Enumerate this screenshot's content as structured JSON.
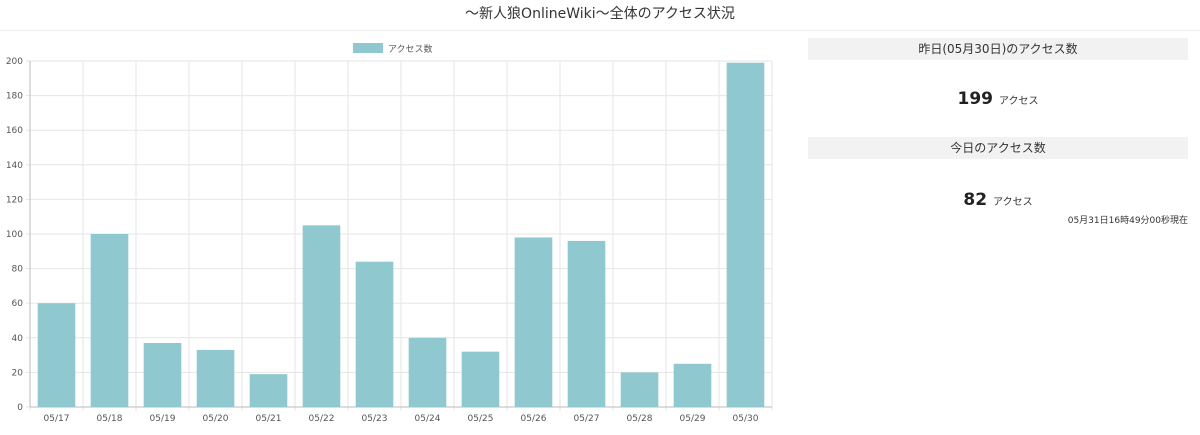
{
  "title": "〜新人狼OnlineWiki〜全体のアクセス状況",
  "yesterday": {
    "header": "昨日(05月30日)のアクセス数",
    "count": "199",
    "unit": "アクセス"
  },
  "today": {
    "header": "今日のアクセス数",
    "count": "82",
    "unit": "アクセス",
    "as_of": "05月31日16時49分00秒現在"
  },
  "colors": {
    "bar": "#8fc9cf",
    "grid": "#e6e6e6",
    "axis": "#bbbbbb"
  },
  "chart_data": {
    "type": "bar",
    "categories": [
      "05/17",
      "05/18",
      "05/19",
      "05/20",
      "05/21",
      "05/22",
      "05/23",
      "05/24",
      "05/25",
      "05/26",
      "05/27",
      "05/28",
      "05/29",
      "05/30"
    ],
    "series": [
      {
        "name": "アクセス数",
        "values": [
          60,
          100,
          37,
          33,
          19,
          105,
          84,
          40,
          32,
          98,
          96,
          20,
          25,
          199
        ]
      }
    ],
    "yticks": [
      0,
      20,
      40,
      60,
      80,
      100,
      120,
      140,
      160,
      180,
      200
    ],
    "ylim": [
      0,
      200
    ],
    "grid": true,
    "legend": "top-center"
  }
}
